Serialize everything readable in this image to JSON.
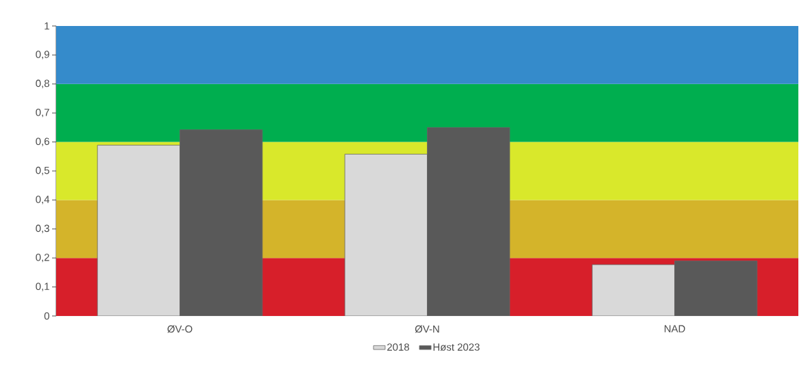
{
  "chart_data": {
    "type": "bar",
    "categories": [
      "ØV-O",
      "ØV-N",
      "NAD"
    ],
    "series": [
      {
        "name": "2018",
        "color": "#d9d9d9",
        "values": [
          0.589,
          0.558,
          0.177
        ]
      },
      {
        "name": "Høst 2023",
        "color": "#595959",
        "values": [
          0.642,
          0.65,
          0.19
        ]
      }
    ],
    "ylim": [
      0,
      1
    ],
    "yticks": [
      0,
      {
        "value": 0.1,
        "label": "0,1"
      },
      {
        "value": 0.2,
        "label": "0,2"
      },
      {
        "value": 0.3,
        "label": "0,3"
      },
      {
        "value": 0.4,
        "label": "0,4"
      },
      {
        "value": 0.5,
        "label": "0,5"
      },
      {
        "value": 0.6,
        "label": "0,6"
      },
      {
        "value": 0.7,
        "label": "0,7"
      },
      {
        "value": 0.8,
        "label": "0,8"
      },
      {
        "value": 0.9,
        "label": "0,9"
      },
      1
    ],
    "bands": [
      {
        "axis": "y",
        "from": 0,
        "to": 0.2,
        "color": "#d71f2a"
      },
      {
        "axis": "y",
        "from": 0.2,
        "to": 0.4,
        "color": "#d4b42a"
      },
      {
        "axis": "y",
        "from": 0.4,
        "to": 0.6,
        "color": "#d9e82b"
      },
      {
        "axis": "y",
        "from": 0.6,
        "to": 0.8,
        "color": "#00ae4f"
      },
      {
        "axis": "y",
        "from": 0.8,
        "to": 1,
        "color": "#358bcb"
      }
    ],
    "grid": false,
    "legend": "bottom"
  }
}
